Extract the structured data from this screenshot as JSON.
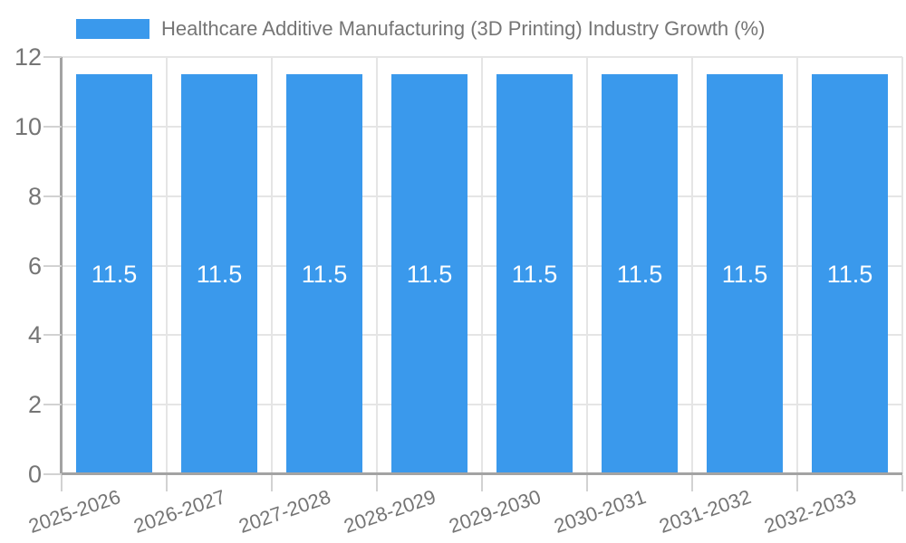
{
  "legend": {
    "label": "Healthcare Additive Manufacturing (3D Printing) Industry Growth (%)"
  },
  "chart_data": {
    "type": "bar",
    "title": "Healthcare Additive Manufacturing (3D Printing) Industry Growth (%)",
    "categories": [
      "2025-2026",
      "2026-2027",
      "2027-2028",
      "2028-2029",
      "2029-2030",
      "2030-2031",
      "2031-2032",
      "2032-2033"
    ],
    "series": [
      {
        "name": "Healthcare Additive Manufacturing (3D Printing) Industry Growth (%)",
        "values": [
          11.5,
          11.5,
          11.5,
          11.5,
          11.5,
          11.5,
          11.5,
          11.5
        ]
      }
    ],
    "data_labels": [
      "11.5",
      "11.5",
      "11.5",
      "11.5",
      "11.5",
      "11.5",
      "11.5",
      "11.5"
    ],
    "xlabel": "",
    "ylabel": "",
    "ylim": [
      0,
      12
    ],
    "yticks": [
      0,
      2,
      4,
      6,
      8,
      10,
      12
    ],
    "grid": true,
    "legend_position": "top",
    "colors": {
      "bar": "#3a99ec",
      "text": "#757575",
      "grid": "#e5e5e5",
      "axis": "#a3a3a3",
      "tick": "#d2d2d2",
      "data_label": "#ffffff",
      "background": "#ffffff"
    }
  }
}
